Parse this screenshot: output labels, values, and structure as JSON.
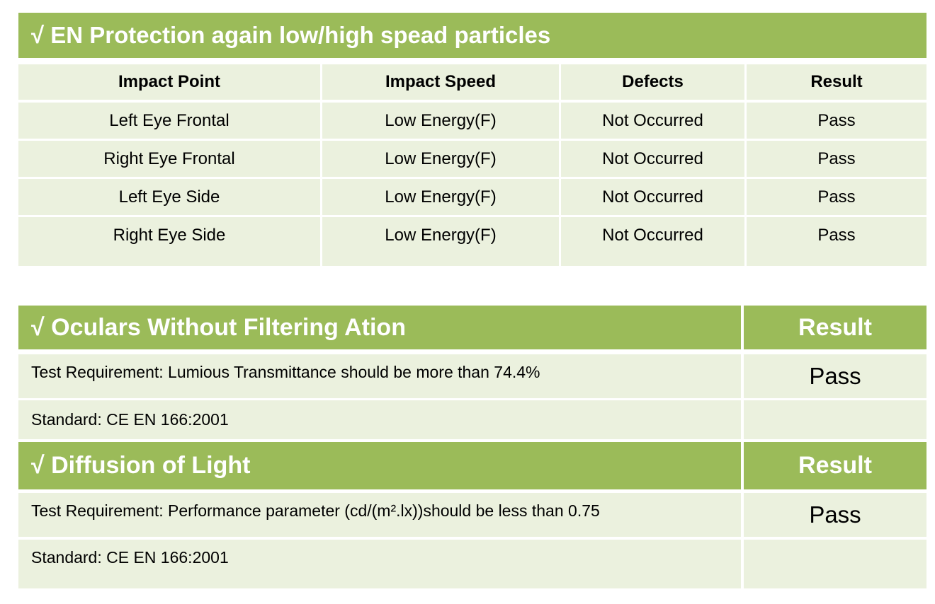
{
  "section1": {
    "title": "√ EN  Protection again low/high spead particles",
    "headers": [
      "Impact Point",
      "Impact Speed",
      "Defects",
      "Result"
    ],
    "rows": [
      [
        "Left Eye Frontal",
        "Low Energy(F)",
        "Not Occurred",
        "Pass"
      ],
      [
        "Right Eye Frontal",
        "Low Energy(F)",
        "Not Occurred",
        "Pass"
      ],
      [
        "Left Eye Side",
        "Low Energy(F)",
        "Not Occurred",
        "Pass"
      ],
      [
        "Right Eye Side",
        "Low Energy(F)",
        "Not Occurred",
        "Pass"
      ]
    ]
  },
  "section2": {
    "title": "√  Oculars Without Filtering Ation",
    "result_header": "Result",
    "requirement": "Test Requirement: Lumious Transmittance should be more than 74.4%",
    "result": "Pass",
    "standard": "Standard: CE EN 166:2001"
  },
  "section3": {
    "title": "√  Diffusion of Light",
    "result_header": "Result",
    "requirement": "Test Requirement: Performance parameter (cd/(m².lx))should be less than 0.75",
    "result": "Pass",
    "standard": "Standard: CE EN 166:2001"
  },
  "colors": {
    "header_green": "#9bbb59",
    "cell_bg": "#ebf1de"
  }
}
